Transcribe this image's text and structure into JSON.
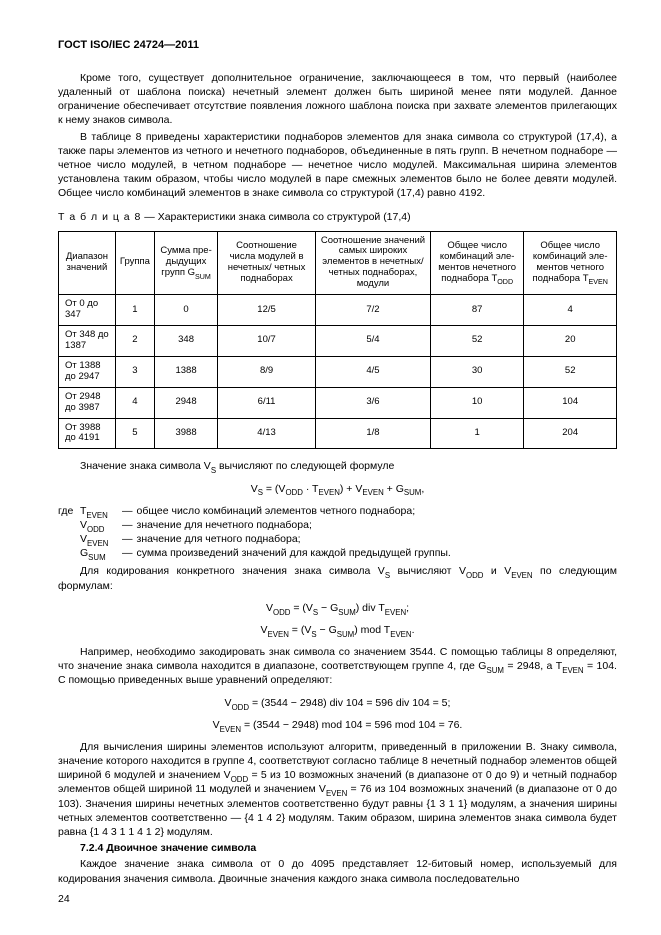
{
  "doc_header": "ГОСТ ISO/IEC 24724—2011",
  "paragraphs": {
    "p1": "Кроме того, существует дополнительное ограничение, заключающееся в том, что первый (наиболее удаленный от шаблона поиска) нечетный элемент должен быть шириной менее пяти модулей. Данное ограничение обеспечивает отсутствие появления ложного шаблона поиска при захвате элементов прилегающих к нему знаков символа.",
    "p2": "В таблице 8 приведены характеристики поднаборов элементов для знака символа со структурой (17,4), а также пары элементов из четного и нечетного поднаборов, объединенные в пять групп. В нечетном поднаборе — четное число модулей, в четном поднаборе — нечетное число модулей. Максимальная ширина элементов установлена таким образом, чтобы число модулей в паре смежных элементов было не более девяти модулей. Общее число комбинаций элементов в знаке символа со структурой (17,4) равно 4192."
  },
  "table": {
    "caption_prefix": "Т а б л и ц а   8",
    "caption_rest": " — Характеристики знака символа со структурой (17,4)",
    "headers": {
      "c1": "Диапазон значений",
      "c2": "Группа",
      "c3_html": "Сумма пре-дыдущих групп G<sub>SUM</sub>",
      "c4": "Соотношение числа модулей в нечетных/ четных поднаборах",
      "c5": "Соотношение значений самых широких элементов в нечетных/четных поднаборах, модули",
      "c6_html": "Общее число комбинаций эле-ментов нечетного поднабора T<sub>ODD</sub>",
      "c7_html": "Общее число комбинаций эле-ментов четного поднабора T<sub>EVEN</sub>"
    },
    "rows": [
      [
        "От 0 до 347",
        "1",
        "0",
        "12/5",
        "7/2",
        "87",
        "4"
      ],
      [
        "От 348 до 1387",
        "2",
        "348",
        "10/7",
        "5/4",
        "52",
        "20"
      ],
      [
        "От 1388 до 2947",
        "3",
        "1388",
        "8/9",
        "4/5",
        "30",
        "52"
      ],
      [
        "От 2948 до 3987",
        "4",
        "2948",
        "6/11",
        "3/6",
        "10",
        "104"
      ],
      [
        "От 3988 до 4191",
        "5",
        "3988",
        "4/13",
        "1/8",
        "1",
        "204"
      ]
    ]
  },
  "after_table": {
    "p_intro_html": "Значение знака символа V<sub>S</sub> вычисляют по следующей формуле",
    "f1_html": "V<sub>S</sub> = (V<sub>ODD</sub> · T<sub>EVEN</sub>) + V<sub>EVEN</sub> + G<sub>SUM</sub>,",
    "defs": [
      {
        "lead": "где",
        "sym_html": "T<sub>EVEN</sub>",
        "txt": "общее число комбинаций элементов четного поднабора;"
      },
      {
        "lead": "",
        "sym_html": "V<sub>ODD</sub>",
        "txt": "значение для нечетного поднабора;"
      },
      {
        "lead": "",
        "sym_html": "V<sub>EVEN</sub>",
        "txt": "значение для четного поднабора;"
      },
      {
        "lead": "",
        "sym_html": "G<sub>SUM</sub>",
        "txt": "сумма произведений значений для каждой предыдущей группы."
      }
    ],
    "p_vcalc_html": "Для кодирования конкретного значения знака символа V<sub>S</sub> вычисляют V<sub>ODD</sub> и V<sub>EVEN</sub> по следующим формулам:",
    "f2_html": "V<sub>ODD</sub> = (V<sub>S</sub> − G<sub>SUM</sub>) div T<sub>EVEN</sub>;",
    "f3_html": "V<sub>EVEN</sub> = (V<sub>S</sub> − G<sub>SUM</sub>) mod T<sub>EVEN</sub>.",
    "p_ex1_html": "Например, необходимо закодировать знак символа со значением 3544. С помощью таблицы 8 определяют, что значение знака символа находится в диапазоне, соответствующем группе 4, где G<sub>SUM</sub> = 2948, а T<sub>EVEN</sub> = 104. С помощью приведенных выше уравнений определяют:",
    "f4_html": "V<sub>ODD</sub> = (3544 − 2948) div 104 = 596 div 104 = 5;",
    "f5_html": "V<sub>EVEN</sub> = (3544 − 2948) mod 104 = 596 mod 104 = 76.",
    "p_ex2_html": "Для вычисления ширины элементов используют алгоритм, приведенный в приложении B. Знаку символа, значение которого находится в группе 4, соответствуют согласно таблице 8 нечетный поднабор элементов общей шириной 6 модулей и значением V<sub>ODD</sub> = 5 из 10 возможных значений (в диапазоне от 0 до 9) и четный поднабор элементов общей шириной 11 модулей и значением V<sub>EVEN</sub> = 76 из 104 возможных значений (в диапазоне от 0 до 103). Значения ширины нечетных элементов соответственно будут равны {1 3 1 1} модулям, а значения ширины четных элементов соответственно — {4 1 4 2} модулям. Таким образом, ширина элементов знака символа будет равна {1 4 3 1 1 4 1 2} модулям.",
    "sec_title": "7.2.4 Двоичное значение символа",
    "p_last": "Каждое значение знака символа от 0 до 4095 представляет 12-битовый номер, используемый для кодирования значения символа. Двоичные значения каждого знака символа последовательно"
  },
  "page_number": "24"
}
